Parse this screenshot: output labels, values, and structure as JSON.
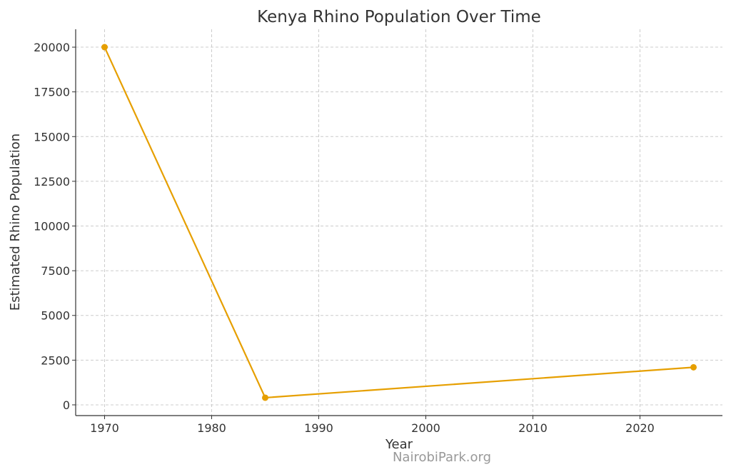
{
  "chart_data": {
    "type": "line",
    "title": "Kenya Rhino Population Over Time",
    "xlabel": "Year",
    "ylabel": "Estimated Rhino Population",
    "x": [
      1970,
      1985,
      2025
    ],
    "series": [
      {
        "name": "Rhino Population",
        "values": [
          20000,
          400,
          2100
        ],
        "color": "#E69F00"
      }
    ],
    "xlim": [
      1967.3,
      2027.7
    ],
    "ylim": [
      -600,
      21000
    ],
    "xticks": [
      1970,
      1980,
      1990,
      2000,
      2010,
      2020
    ],
    "yticks": [
      0,
      2500,
      5000,
      7500,
      10000,
      12500,
      15000,
      17500,
      20000
    ],
    "grid": true,
    "watermark": "NairobiPark.org"
  }
}
